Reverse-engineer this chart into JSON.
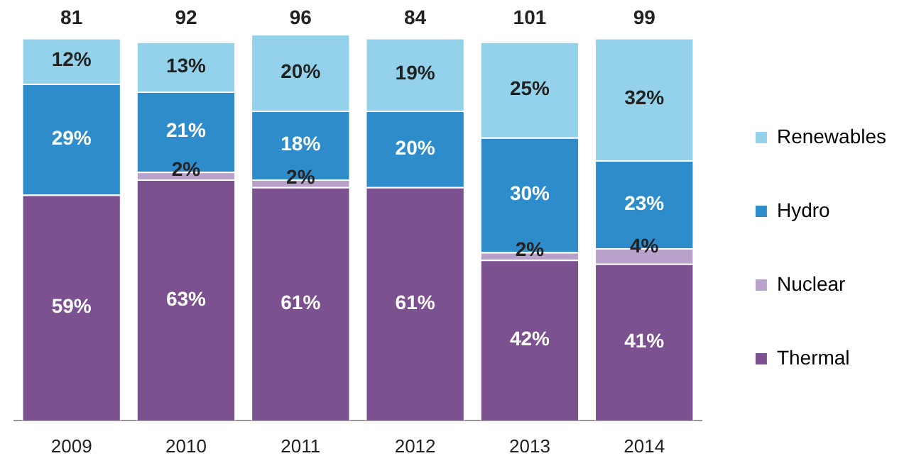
{
  "chart_data": {
    "type": "bar",
    "stacked": true,
    "categories": [
      "2009",
      "2010",
      "2011",
      "2012",
      "2013",
      "2014"
    ],
    "series": [
      {
        "name": "Thermal",
        "color": "#7b5190",
        "values": [
          59,
          63,
          61,
          61,
          42,
          41
        ],
        "value_labels": [
          "59%",
          "63%",
          "61%",
          "61%",
          "42%",
          "41%"
        ]
      },
      {
        "name": "Nuclear",
        "color": "#b8a2cc",
        "values": [
          null,
          2,
          2,
          null,
          2,
          4
        ],
        "value_labels": [
          null,
          "2%",
          "2%",
          null,
          "2%",
          "4%"
        ]
      },
      {
        "name": "Hydro",
        "color": "#2f8ccb",
        "values": [
          29,
          21,
          18,
          20,
          30,
          23
        ],
        "value_labels": [
          "29%",
          "21%",
          "18%",
          "20%",
          "30%",
          "23%"
        ]
      },
      {
        "name": "Renewables",
        "color": "#93d2ea",
        "values": [
          12,
          13,
          20,
          19,
          25,
          32
        ],
        "value_labels": [
          "12%",
          "13%",
          "20%",
          "19%",
          "25%",
          "32%"
        ]
      }
    ],
    "annotations": [
      "81",
      "92",
      "96",
      "84",
      "101",
      "99"
    ],
    "tick_labels": "x",
    "legend": "right"
  }
}
